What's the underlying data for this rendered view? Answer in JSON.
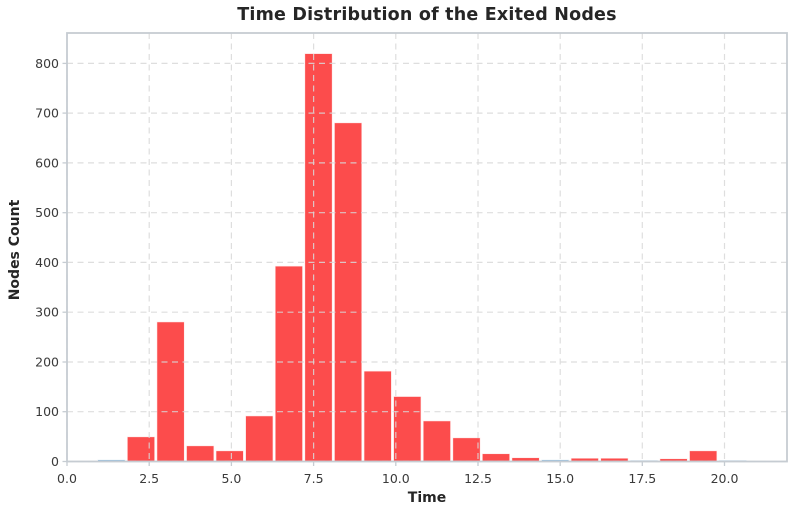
{
  "chart_data": {
    "type": "bar",
    "subtype": "histogram",
    "title": "Time Distribution of the Exited Nodes",
    "xlabel": "Time",
    "ylabel": "Nodes Count",
    "xlim": [
      0,
      21.9
    ],
    "ylim": [
      0,
      861
    ],
    "x_ticks": [
      0.0,
      2.5,
      5.0,
      7.5,
      10.0,
      12.5,
      15.0,
      17.5,
      20.0
    ],
    "y_ticks": [
      0,
      100,
      200,
      300,
      400,
      500,
      600,
      700,
      800
    ],
    "grid": true,
    "legend": "none",
    "bin_edges": [
      0.9,
      1.8,
      2.7,
      3.6,
      4.5,
      5.4,
      6.3,
      7.2,
      8.1,
      9.0,
      9.9,
      10.8,
      11.7,
      12.6,
      13.5,
      14.4,
      15.3,
      16.2,
      17.1,
      18.0,
      18.9,
      19.8,
      20.7,
      21.6
    ],
    "series": [
      {
        "name": "secondary-blue-histogram",
        "color": "#8ab8dc",
        "counts": [
          4,
          0,
          0,
          0,
          0,
          0,
          0,
          0,
          0,
          0,
          0,
          0,
          0,
          0,
          0,
          4,
          0,
          0,
          3,
          0,
          0,
          3,
          0
        ]
      },
      {
        "name": "exited-nodes-red-histogram",
        "color": "#fc4c4c",
        "counts": [
          0,
          50,
          281,
          32,
          22,
          92,
          393,
          820,
          681,
          182,
          131,
          82,
          48,
          16,
          8,
          0,
          7,
          7,
          0,
          6,
          22,
          0,
          0
        ]
      }
    ],
    "style": {
      "grid_color": "#d8d8d8",
      "spine_color": "#c6ccd2",
      "bar_edge_color": "#ffffff",
      "title_color": "#262626",
      "tick_label_color": "#3a3a3a",
      "background": "#ffffff"
    }
  }
}
